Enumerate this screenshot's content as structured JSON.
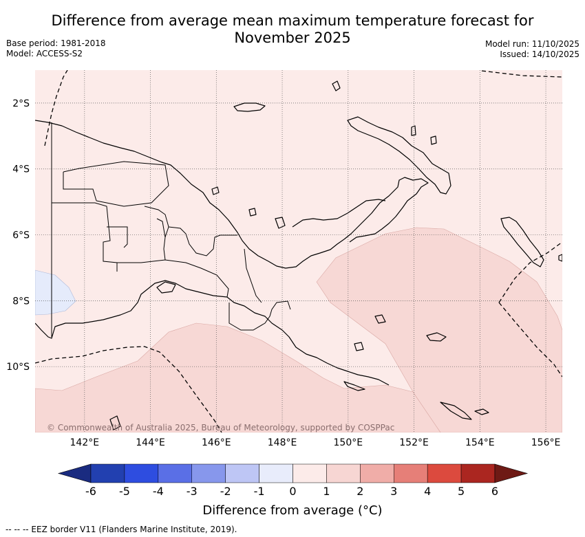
{
  "title_line1": "Difference from average mean maximum temperature forecast for",
  "title_line2": "November 2025",
  "meta": {
    "base_period": "Base period: 1981-2018",
    "model": "Model: ACCESS-S2",
    "model_run": "Model run: 11/10/2025",
    "issued": "Issued: 14/10/2025"
  },
  "map": {
    "region": "Papua New Guinea",
    "lon_ticks": [
      "142°E",
      "144°E",
      "146°E",
      "148°E",
      "150°E",
      "152°E",
      "154°E",
      "156°E"
    ],
    "lat_ticks": [
      "2°S",
      "4°S",
      "6°S",
      "8°S",
      "10°S"
    ],
    "lon_range": [
      140.5,
      156.5
    ],
    "lat_range": [
      -1.0,
      -12.0
    ],
    "copyright": "© Commonwealth of Australia 2025, Bureau of Meteorology, supported by COSPPac",
    "fill_colors": {
      "base": "#fcebe9",
      "warm": "#f7d8d5",
      "cool": "#e5ebfb"
    }
  },
  "colorbar": {
    "labels": [
      "-6",
      "-5",
      "-4",
      "-3",
      "-2",
      "-1",
      "0",
      "1",
      "2",
      "3",
      "4",
      "5",
      "6"
    ],
    "colors": [
      "#2240b0",
      "#2e4de0",
      "#5a6fe6",
      "#8797ec",
      "#bec6f5",
      "#e8ecfb",
      "#fcebe9",
      "#f7d6d3",
      "#f0ada8",
      "#e67f78",
      "#dc4a3e",
      "#ab2620"
    ],
    "low_extend_color": "#1a2b80",
    "high_extend_color": "#6e1a15",
    "title": "Difference from average (°C)"
  },
  "footnote": "--  --  -- EEZ border V11 (Flanders Marine Institute, 2019)."
}
